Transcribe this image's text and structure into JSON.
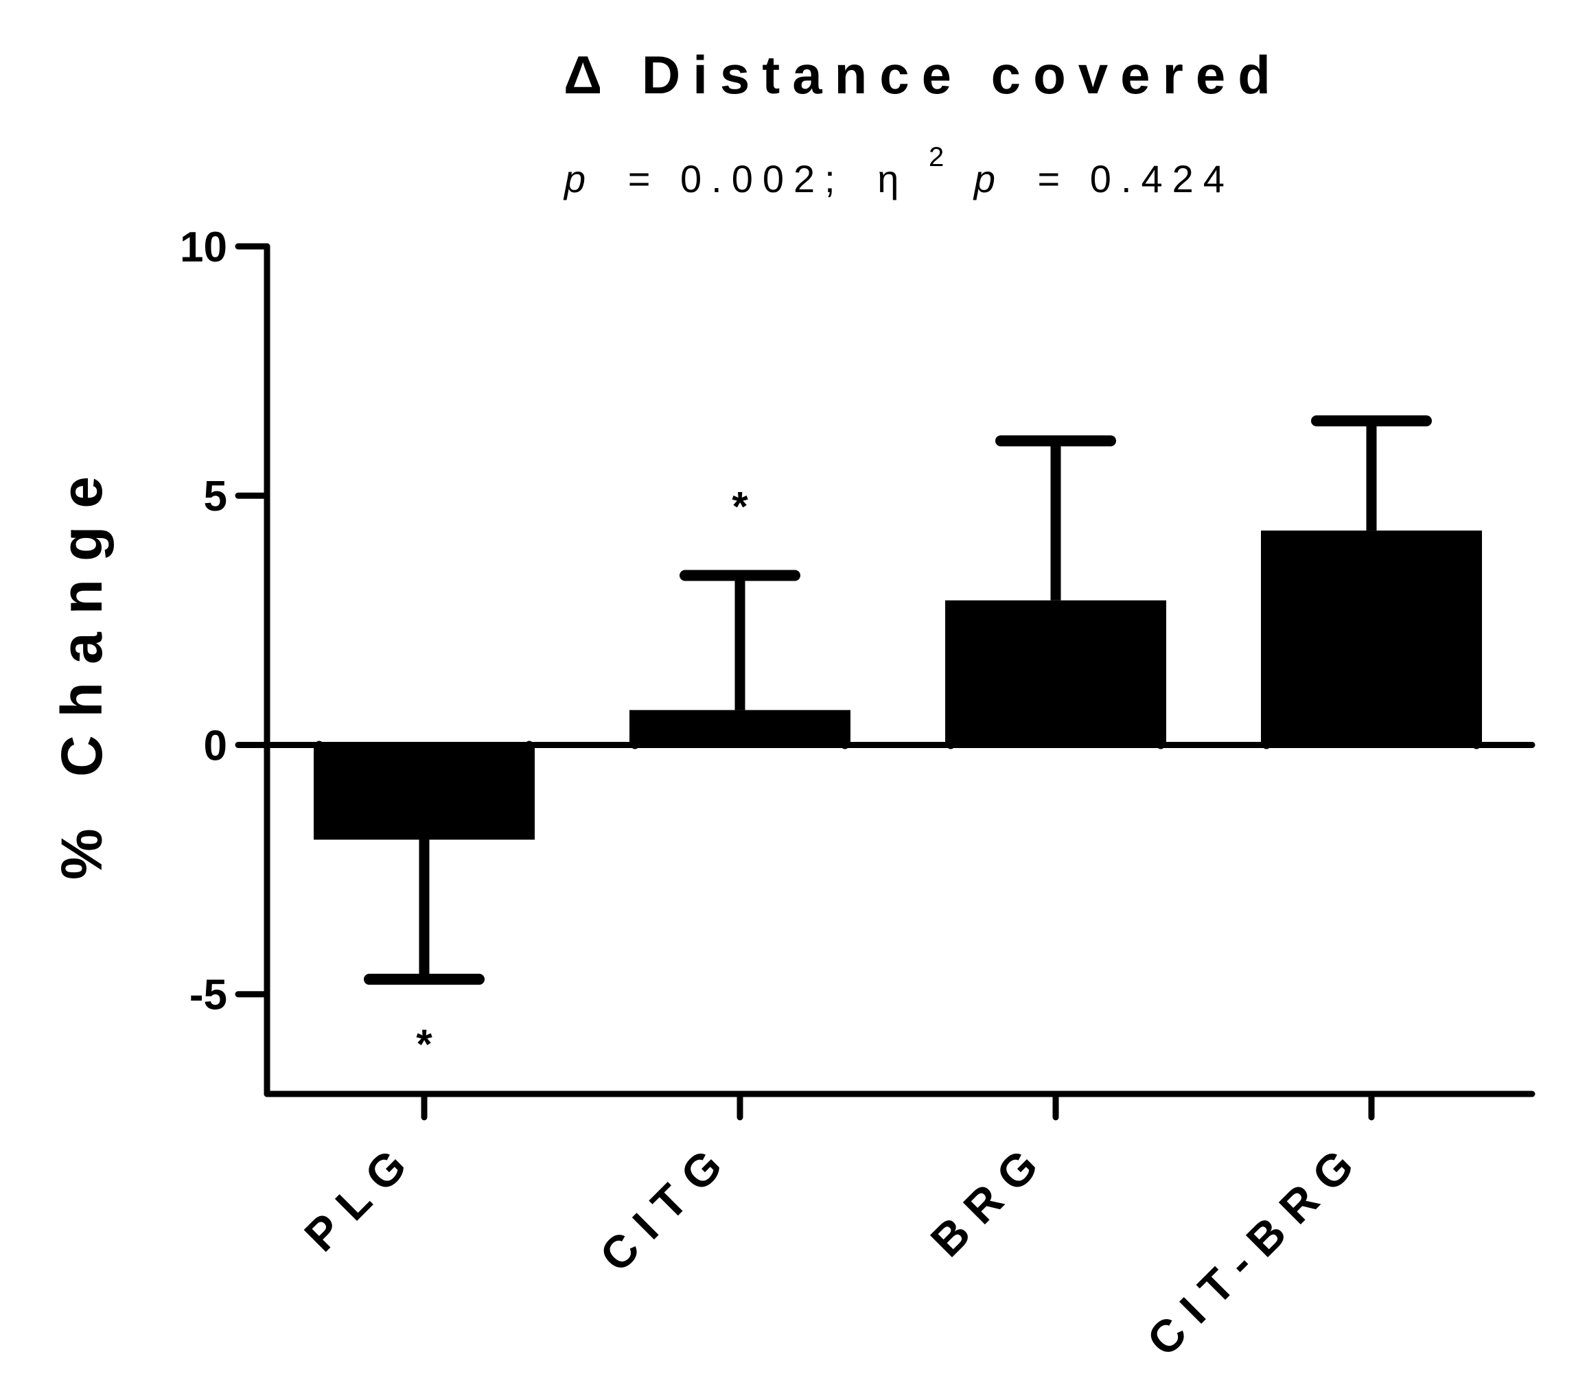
{
  "chart_data": {
    "type": "bar",
    "title": "Δ Distance covered",
    "subtitle": {
      "p_label": "p",
      "p_value": "= 0.002;",
      "eta_symbol": "η",
      "eta_sup": "2",
      "eta_p_label": "p",
      "eta_value": "= 0.424"
    },
    "ylabel": "% Change",
    "xlabel": "",
    "ylim": [
      -7,
      10
    ],
    "yticks": [
      10,
      5,
      0,
      -5
    ],
    "ytick_labels": [
      "10",
      "5",
      "0",
      "-5"
    ],
    "categories": [
      "PLG",
      "CITG",
      "BRG",
      "CIT-BRG"
    ],
    "series": [
      {
        "values": [
          -1.9,
          0.7,
          2.9,
          4.3
        ],
        "error": [
          2.8,
          2.7,
          3.2,
          2.2
        ]
      }
    ],
    "significance_markers": [
      "*",
      "*",
      "",
      ""
    ],
    "bar_color": "#000000",
    "grid": false,
    "legend": "none"
  }
}
